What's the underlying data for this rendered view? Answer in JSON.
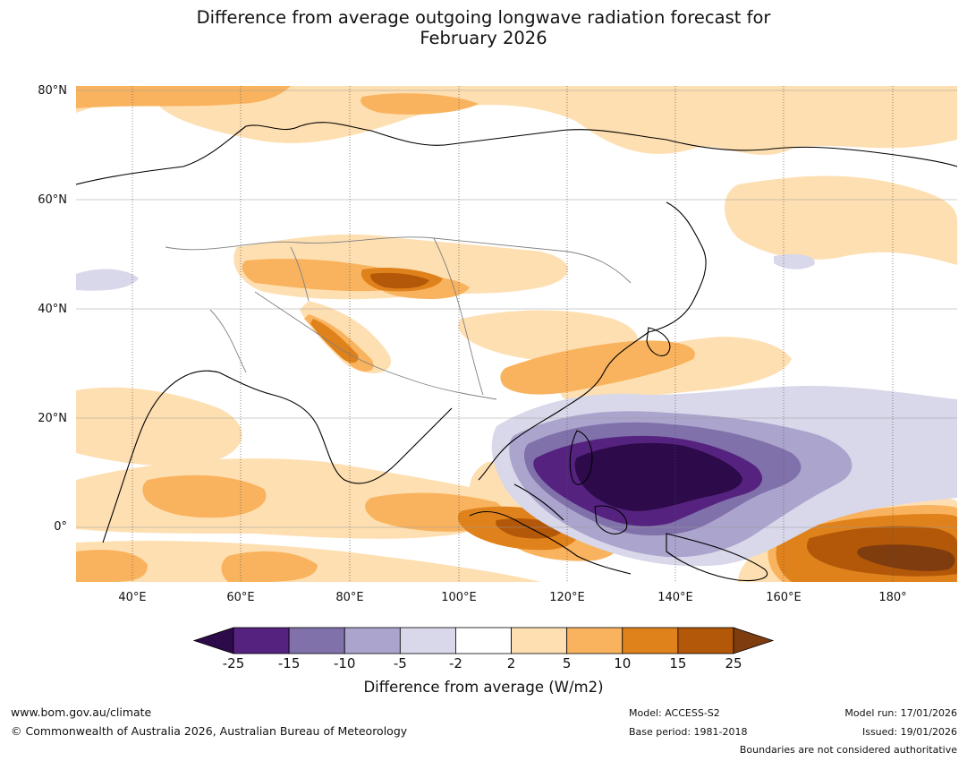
{
  "title_line1": "Difference from average outgoing longwave radiation forecast for",
  "title_line2": "February 2026",
  "map": {
    "lat_labels": [
      "80°N",
      "60°N",
      "40°N",
      "20°N",
      "0°"
    ],
    "lon_labels": [
      "40°E",
      "60°E",
      "80°E",
      "100°E",
      "120°E",
      "140°E",
      "160°E",
      "180°"
    ]
  },
  "colorbar": {
    "ticks": [
      "-25",
      "-15",
      "-10",
      "-5",
      "-2",
      "2",
      "5",
      "10",
      "15",
      "25"
    ],
    "colors": [
      "#2d0a4a",
      "#55237f",
      "#8071ab",
      "#aba4cd",
      "#d8d8ea",
      "#ffffff",
      "#fedfb1",
      "#f9b35e",
      "#e0821c",
      "#b35808",
      "#7f3c0f"
    ],
    "label": "Difference from average (W/m2)"
  },
  "footer": {
    "website": "www.bom.gov.au/climate",
    "copyright": "© Commonwealth of Australia 2026, Australian Bureau of Meteorology",
    "model": "Model: ACCESS-S2",
    "base_period": "Base period: 1981-2018",
    "model_run": "Model run: 17/01/2026",
    "issued": "Issued: 19/01/2026",
    "disclaimer": "Boundaries are not considered authoritative"
  }
}
